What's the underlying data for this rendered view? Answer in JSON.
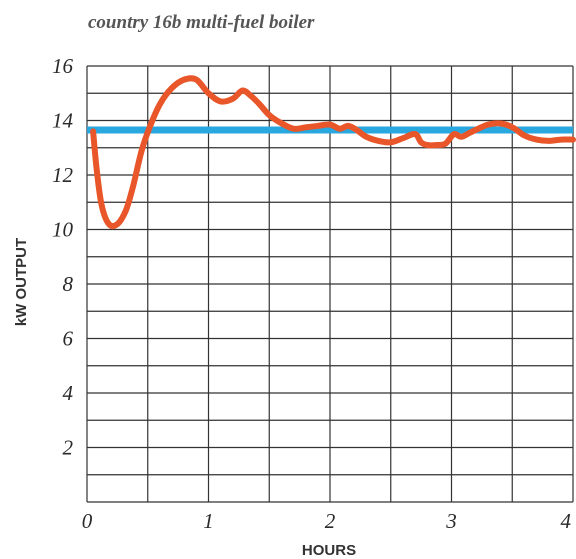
{
  "chart_data": {
    "type": "line",
    "title": "country 16b multi-fuel boiler",
    "xlabel": "HOURS",
    "ylabel": "kW OUTPUT",
    "xlim": [
      0,
      4
    ],
    "ylim": [
      0,
      16
    ],
    "x_ticks": [
      "0",
      "1",
      "2",
      "3",
      "4"
    ],
    "y_ticks": [
      "2",
      "4",
      "6",
      "8",
      "10",
      "12",
      "14",
      "16"
    ],
    "grid": true,
    "reference_line": {
      "y": 13.65,
      "color": "#29a8e0"
    },
    "series": [
      {
        "color": "#e8562a",
        "x": [
          0.05,
          0.08,
          0.12,
          0.18,
          0.25,
          0.32,
          0.38,
          0.45,
          0.52,
          0.6,
          0.7,
          0.8,
          0.9,
          1.0,
          1.1,
          1.2,
          1.28,
          1.35,
          1.42,
          1.5,
          1.6,
          1.7,
          1.8,
          1.9,
          2.0,
          2.08,
          2.15,
          2.22,
          2.3,
          2.4,
          2.5,
          2.6,
          2.7,
          2.75,
          2.8,
          2.88,
          2.95,
          3.02,
          3.08,
          3.15,
          3.22,
          3.3,
          3.38,
          3.45,
          3.52,
          3.6,
          3.7,
          3.8,
          3.9,
          4.0
        ],
        "y": [
          13.6,
          12.2,
          10.9,
          10.2,
          10.2,
          10.7,
          11.6,
          12.9,
          13.8,
          14.6,
          15.2,
          15.5,
          15.5,
          15.0,
          14.7,
          14.8,
          15.1,
          14.9,
          14.6,
          14.2,
          13.9,
          13.7,
          13.75,
          13.8,
          13.85,
          13.7,
          13.8,
          13.65,
          13.4,
          13.25,
          13.2,
          13.35,
          13.5,
          13.2,
          13.1,
          13.1,
          13.15,
          13.5,
          13.4,
          13.55,
          13.7,
          13.85,
          13.9,
          13.85,
          13.7,
          13.45,
          13.3,
          13.25,
          13.3,
          13.3
        ]
      }
    ]
  }
}
